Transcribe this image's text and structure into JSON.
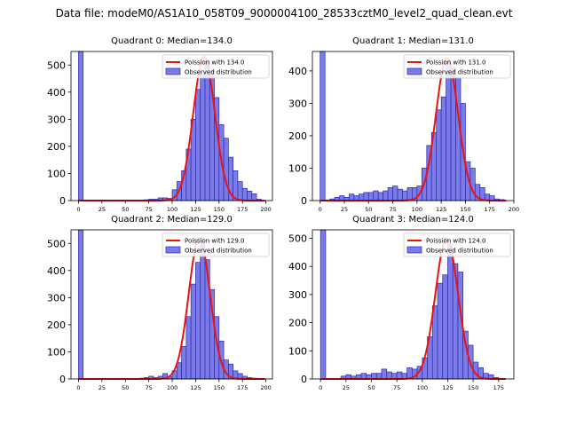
{
  "figure_title": "Data file: modeM0/AS1A10_058T09_9000004100_28533cztM0_level2_quad_clean.evt",
  "colors": {
    "bar_fill": "#7b7be8",
    "bar_edge": "#2a2ab0",
    "curve": "#ee1111",
    "axis": "#000000"
  },
  "chart_data": [
    {
      "type": "bar",
      "title": "Quadrant 0: Median=134.0",
      "legend": {
        "placement": "top-right",
        "curve_label": "Poission with 134.0",
        "bar_label": "Observed distribution"
      },
      "bin_width": 5,
      "xlim": [
        -8,
        207
      ],
      "ylim": [
        0,
        550
      ],
      "xticks": [
        0,
        25,
        50,
        75,
        100,
        125,
        150,
        175,
        200
      ],
      "yticks": [
        0,
        100,
        200,
        300,
        400,
        500
      ],
      "bins": [
        [
          0,
          550
        ],
        [
          70,
          3
        ],
        [
          75,
          5
        ],
        [
          80,
          5
        ],
        [
          85,
          10
        ],
        [
          90,
          10
        ],
        [
          95,
          8
        ],
        [
          100,
          40
        ],
        [
          105,
          70
        ],
        [
          110,
          110
        ],
        [
          115,
          190
        ],
        [
          120,
          300
        ],
        [
          125,
          410
        ],
        [
          130,
          470
        ],
        [
          135,
          520
        ],
        [
          140,
          480
        ],
        [
          145,
          380
        ],
        [
          150,
          280
        ],
        [
          155,
          230
        ],
        [
          160,
          160
        ],
        [
          165,
          110
        ],
        [
          170,
          70
        ],
        [
          175,
          45
        ],
        [
          180,
          35
        ],
        [
          185,
          25
        ],
        [
          190,
          5
        ]
      ],
      "poisson_mean": 134.0,
      "poisson_peak": 530
    },
    {
      "type": "bar",
      "title": "Quadrant 1: Median=131.0",
      "legend": {
        "placement": "top-right",
        "curve_label": "Poission with 131.0",
        "bar_label": "Observed distribution"
      },
      "bin_width": 5,
      "xlim": [
        -8,
        200
      ],
      "ylim": [
        0,
        460
      ],
      "xticks": [
        0,
        25,
        50,
        75,
        100,
        125,
        150,
        175,
        200
      ],
      "yticks": [
        0,
        100,
        200,
        300,
        400
      ],
      "bins": [
        [
          0,
          460
        ],
        [
          10,
          5
        ],
        [
          15,
          10
        ],
        [
          20,
          15
        ],
        [
          25,
          10
        ],
        [
          30,
          20
        ],
        [
          35,
          15
        ],
        [
          40,
          20
        ],
        [
          45,
          25
        ],
        [
          50,
          25
        ],
        [
          55,
          30
        ],
        [
          60,
          25
        ],
        [
          65,
          30
        ],
        [
          70,
          40
        ],
        [
          75,
          45
        ],
        [
          80,
          35
        ],
        [
          85,
          30
        ],
        [
          90,
          40
        ],
        [
          95,
          40
        ],
        [
          100,
          45
        ],
        [
          105,
          100
        ],
        [
          110,
          170
        ],
        [
          115,
          210
        ],
        [
          120,
          280
        ],
        [
          125,
          320
        ],
        [
          130,
          430
        ],
        [
          135,
          410
        ],
        [
          140,
          380
        ],
        [
          145,
          300
        ],
        [
          150,
          120
        ],
        [
          155,
          100
        ],
        [
          160,
          50
        ],
        [
          165,
          40
        ],
        [
          170,
          20
        ],
        [
          175,
          15
        ],
        [
          180,
          5
        ],
        [
          185,
          3
        ]
      ],
      "poisson_mean": 131.0,
      "poisson_peak": 440
    },
    {
      "type": "bar",
      "title": "Quadrant 2: Median=129.0",
      "legend": {
        "placement": "top-right",
        "curve_label": "Poission with 129.0",
        "bar_label": "Observed distribution"
      },
      "bin_width": 5,
      "xlim": [
        -8,
        207
      ],
      "ylim": [
        0,
        550
      ],
      "xticks": [
        0,
        25,
        50,
        75,
        100,
        125,
        150,
        175,
        200
      ],
      "yticks": [
        0,
        100,
        200,
        300,
        400,
        500
      ],
      "bins": [
        [
          0,
          550
        ],
        [
          65,
          3
        ],
        [
          70,
          5
        ],
        [
          75,
          10
        ],
        [
          80,
          5
        ],
        [
          85,
          10
        ],
        [
          90,
          20
        ],
        [
          95,
          8
        ],
        [
          100,
          30
        ],
        [
          105,
          60
        ],
        [
          110,
          120
        ],
        [
          115,
          230
        ],
        [
          120,
          350
        ],
        [
          125,
          430
        ],
        [
          130,
          500
        ],
        [
          135,
          440
        ],
        [
          140,
          330
        ],
        [
          145,
          230
        ],
        [
          150,
          140
        ],
        [
          155,
          70
        ],
        [
          160,
          55
        ],
        [
          165,
          30
        ],
        [
          170,
          20
        ],
        [
          175,
          10
        ],
        [
          180,
          5
        ],
        [
          185,
          3
        ]
      ],
      "poisson_mean": 129.0,
      "poisson_peak": 520
    },
    {
      "type": "bar",
      "title": "Quadrant 3: Median=124.0",
      "legend": {
        "placement": "top-right",
        "curve_label": "Poission with 124.0",
        "bar_label": "Observed distribution"
      },
      "bin_width": 5,
      "xlim": [
        -8,
        190
      ],
      "ylim": [
        0,
        530
      ],
      "xticks": [
        0,
        25,
        50,
        75,
        100,
        125,
        150,
        175
      ],
      "yticks": [
        0,
        100,
        200,
        300,
        400,
        500
      ],
      "bins": [
        [
          0,
          530
        ],
        [
          20,
          10
        ],
        [
          25,
          15
        ],
        [
          30,
          10
        ],
        [
          35,
          15
        ],
        [
          40,
          20
        ],
        [
          45,
          15
        ],
        [
          50,
          20
        ],
        [
          55,
          20
        ],
        [
          60,
          35
        ],
        [
          65,
          25
        ],
        [
          70,
          20
        ],
        [
          75,
          25
        ],
        [
          80,
          20
        ],
        [
          85,
          40
        ],
        [
          90,
          35
        ],
        [
          95,
          45
        ],
        [
          100,
          75
        ],
        [
          105,
          150
        ],
        [
          110,
          260
        ],
        [
          115,
          340
        ],
        [
          120,
          370
        ],
        [
          125,
          480
        ],
        [
          130,
          410
        ],
        [
          135,
          380
        ],
        [
          140,
          170
        ],
        [
          145,
          120
        ],
        [
          150,
          60
        ],
        [
          155,
          40
        ],
        [
          160,
          20
        ],
        [
          165,
          15
        ],
        [
          170,
          5
        ]
      ],
      "poisson_mean": 124.0,
      "poisson_peak": 500
    }
  ]
}
